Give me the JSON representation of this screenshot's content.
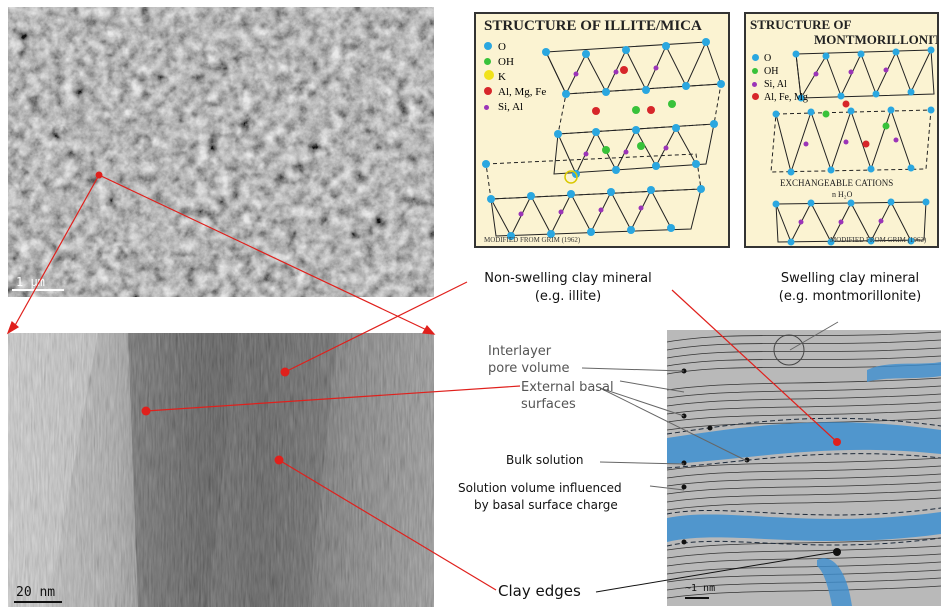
{
  "sem": {
    "scale": "1 μm"
  },
  "tem": {
    "scale": "20 nm"
  },
  "illite_panel": {
    "title": "STRUCTURE OF ILLITE/MICA",
    "legend": [
      {
        "symbol": "O",
        "color": "#2aa7e0"
      },
      {
        "symbol": "OH",
        "color": "#38c23a"
      },
      {
        "symbol": "K",
        "color": "#f1e21b"
      },
      {
        "symbol": "Al, Mg, Fe",
        "color": "#d7262a"
      },
      {
        "symbol": "Si, Al",
        "color": "#9b34b8"
      }
    ],
    "credit": "MODIFIED FROM GRIM (1962)"
  },
  "mont_panel": {
    "title_line1": "STRUCTURE OF",
    "title_line2": "MONTMORILLONITE",
    "legend": [
      {
        "symbol": "O",
        "color": "#2aa7e0"
      },
      {
        "symbol": "OH",
        "color": "#38c23a"
      },
      {
        "symbol": "Si, Al",
        "color": "#9b34b8"
      },
      {
        "symbol": "Al, Fe, Mg",
        "color": "#d7262a"
      }
    ],
    "interlayer_line1": "EXCHANGEABLE CATIONS",
    "interlayer_line2": "n H₂O",
    "credit": "MODIFIED FROM GRIM (1962)"
  },
  "labels": {
    "nonswelling_1": "Non-swelling clay mineral",
    "nonswelling_2": "(e.g. illite)",
    "swelling_1": "Swelling clay mineral",
    "swelling_2": "(e.g. montmorillonite)",
    "interlayer_1": "Interlayer",
    "interlayer_2": "pore volume",
    "external_1": "External basal",
    "external_2": "surfaces",
    "bulk": "Bulk solution",
    "solvol_1": "Solution volume influenced",
    "solvol_2": "by basal surface charge",
    "edges": "Clay edges"
  },
  "schematic": {
    "scale": "~1 nm"
  },
  "colors": {
    "pointer": "#e0201c",
    "pore_blue": "#3d8fd0",
    "layer_gray": "#b9b9b9",
    "panel_bg": "#fbf3d2"
  }
}
